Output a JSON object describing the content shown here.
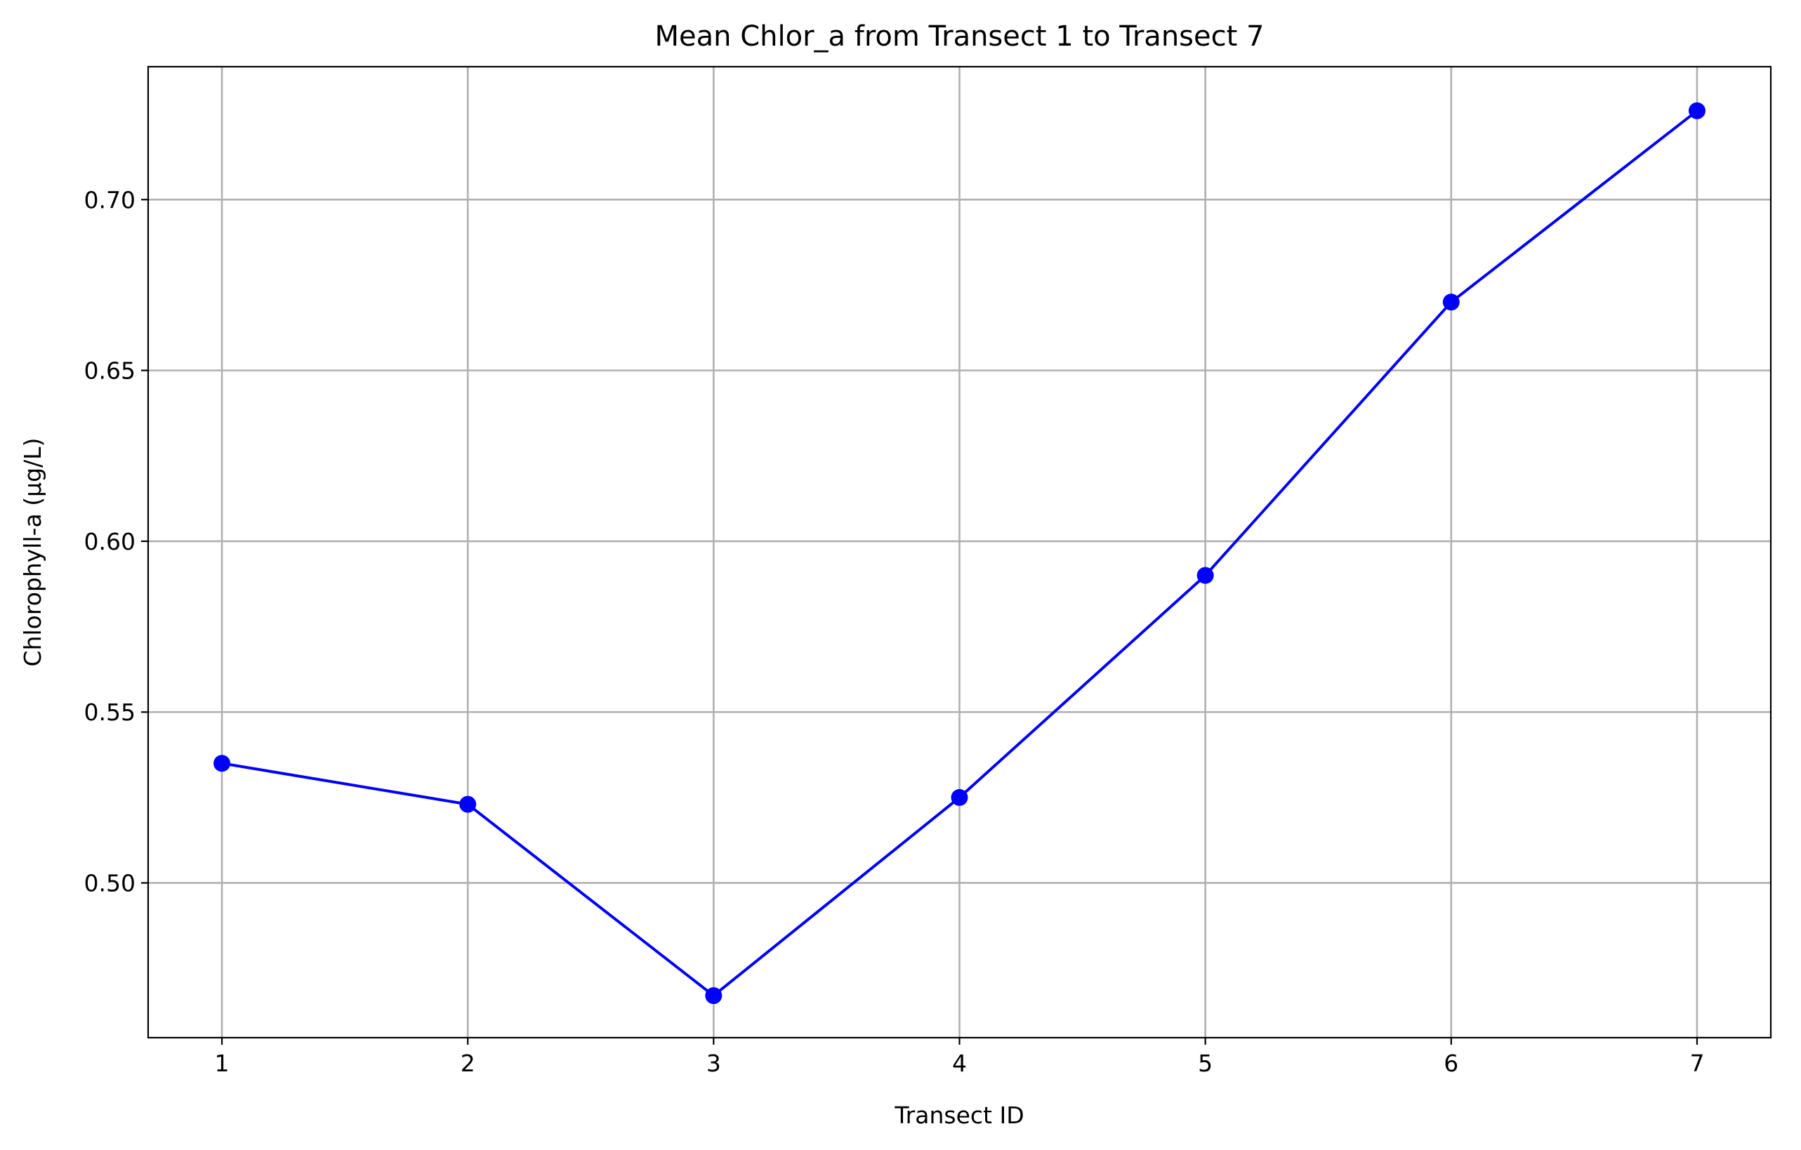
{
  "chart_data": {
    "type": "line",
    "title": "Mean Chlor_a from Transect 1 to Transect 7",
    "xlabel": "Transect ID",
    "ylabel": "Chlorophyll-a (µg/L)",
    "x": [
      1,
      2,
      3,
      4,
      5,
      6,
      7
    ],
    "series": [
      {
        "values": [
          0.535,
          0.523,
          0.467,
          0.525,
          0.59,
          0.67,
          0.726
        ],
        "color": "#0000ff",
        "marker": "circle"
      }
    ],
    "xlim": [
      0.7,
      7.3
    ],
    "ylim": [
      0.4547,
      0.7389
    ],
    "xticks": [
      1,
      2,
      3,
      4,
      5,
      6,
      7
    ],
    "yticks": [
      0.5,
      0.55,
      0.6,
      0.65,
      0.7
    ],
    "xtick_labels": [
      "1",
      "2",
      "3",
      "4",
      "5",
      "6",
      "7"
    ],
    "ytick_labels": [
      "0.50",
      "0.55",
      "0.60",
      "0.65",
      "0.70"
    ],
    "grid": true,
    "legend": "none"
  }
}
